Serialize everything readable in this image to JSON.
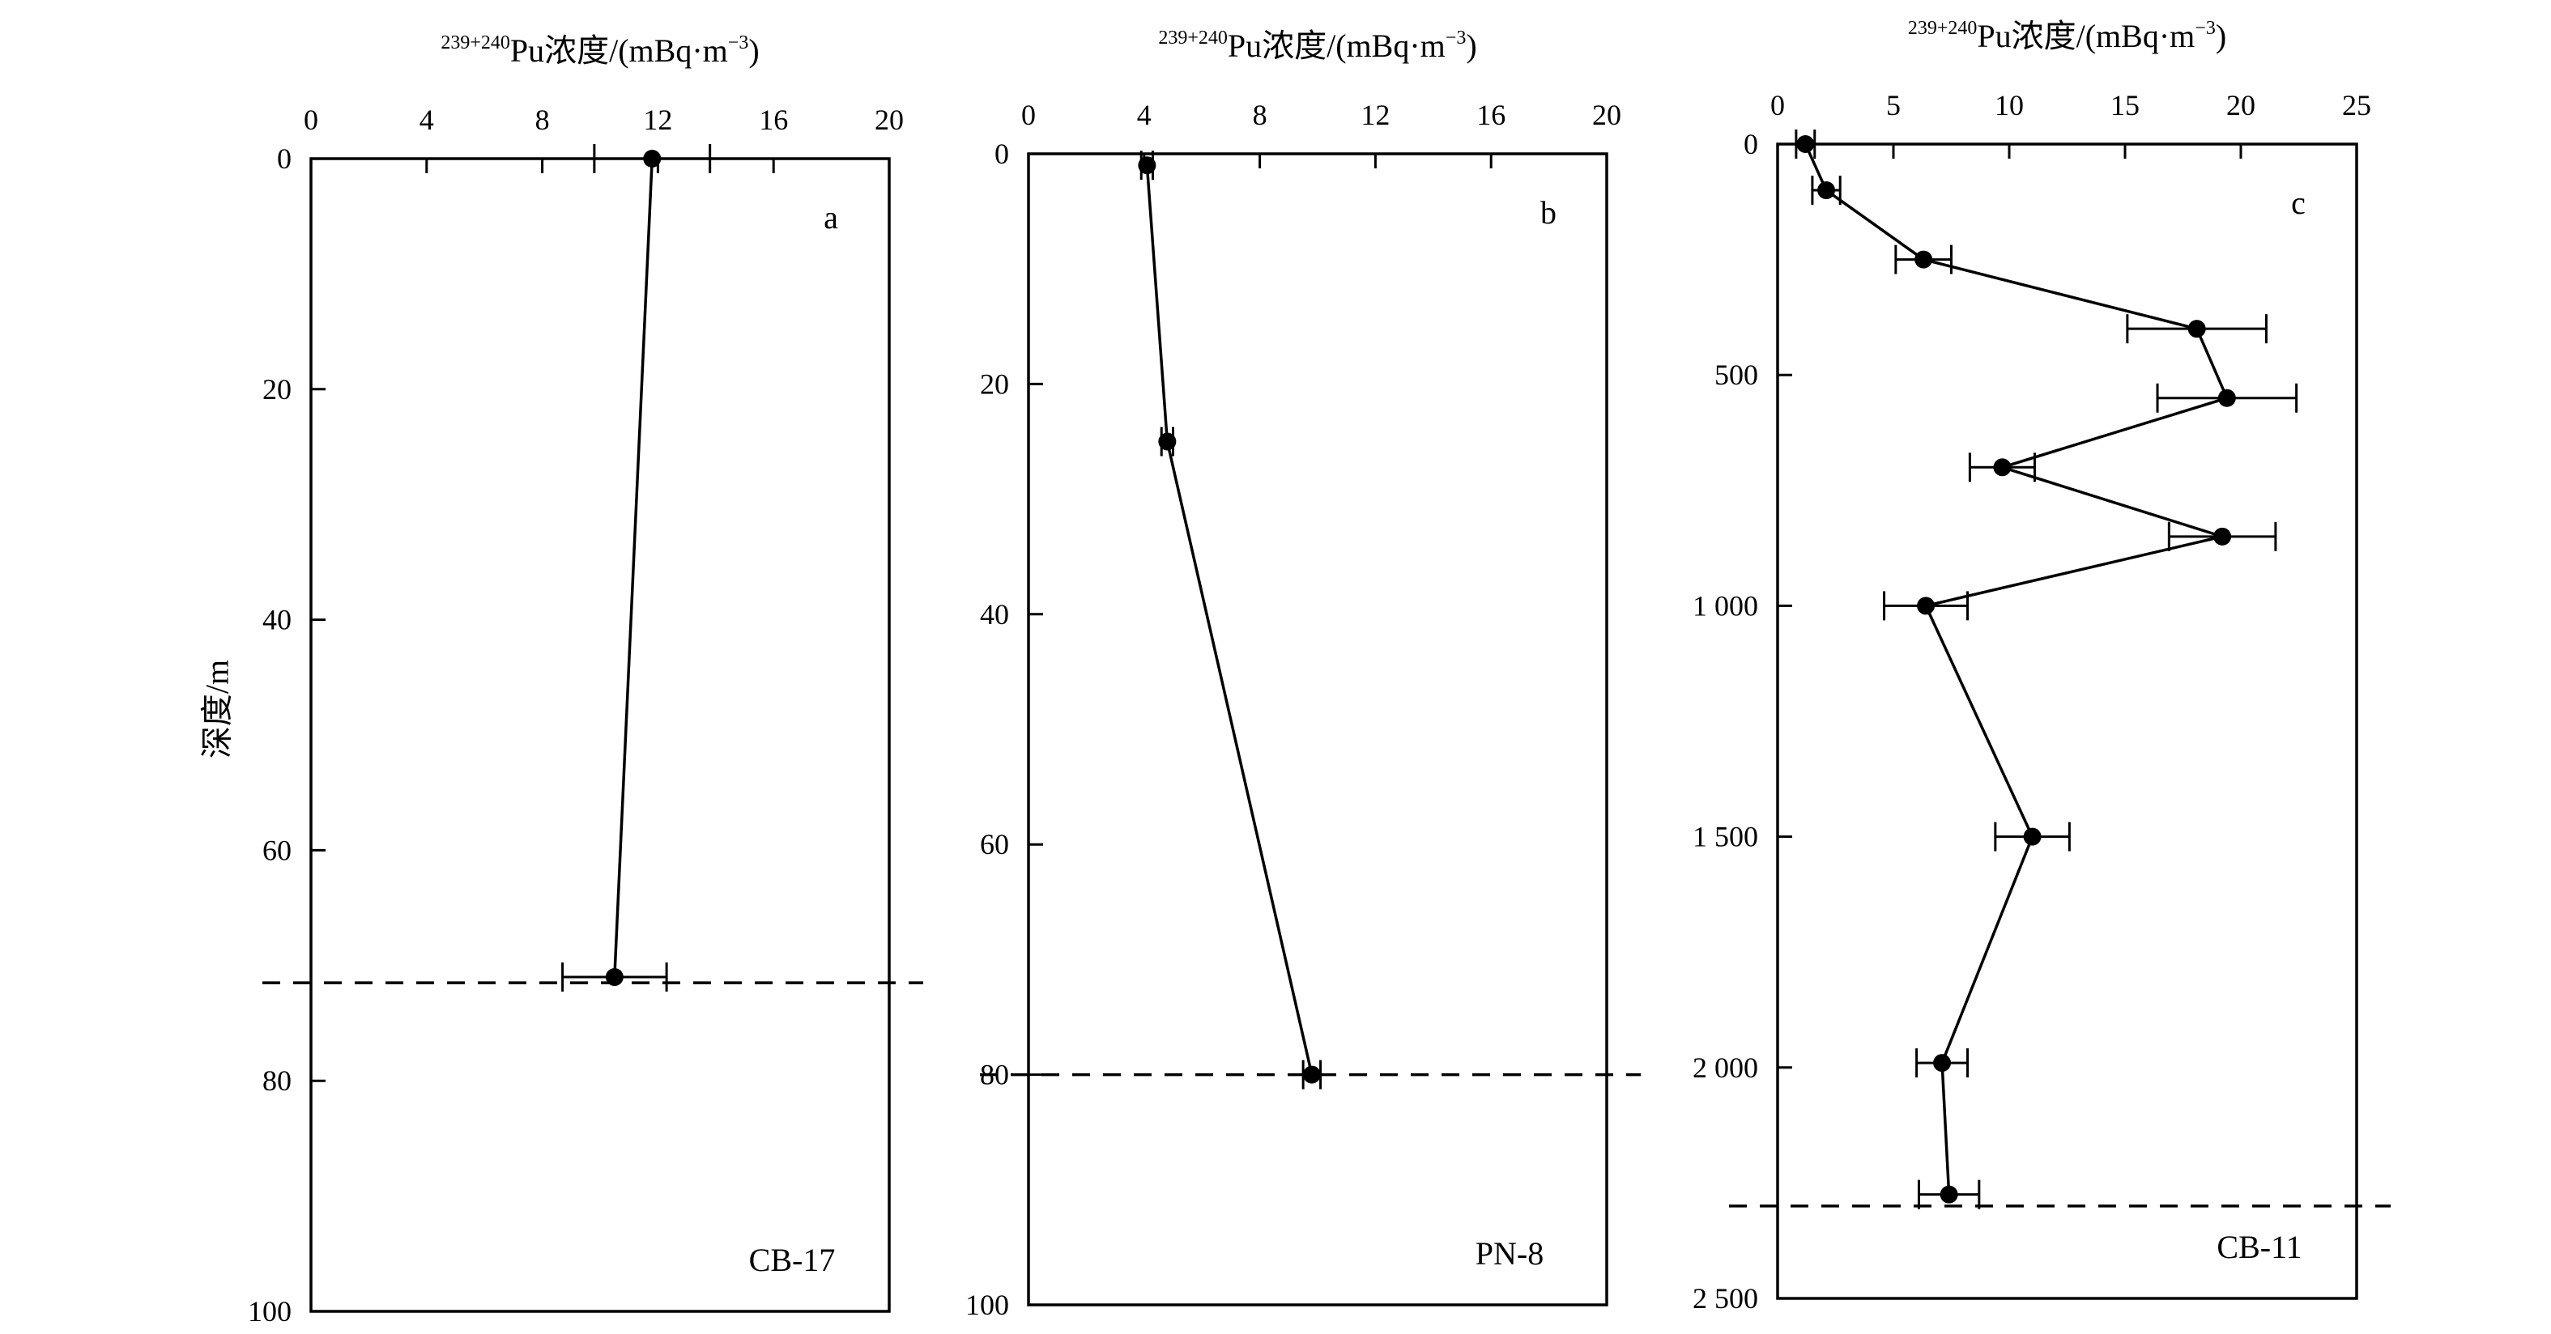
{
  "y_axis_label": "深度/m",
  "colors": {
    "ink": "#000000",
    "background": "#ffffff"
  },
  "chart_data": [
    {
      "type": "line",
      "panel_letter": "a",
      "station": "CB-17",
      "xlabel_sup": "239+240",
      "xlabel_main": "Pu浓度/(mBq·m",
      "xlabel_exp": "−3",
      "xlabel_close": ")",
      "xlim": [
        0,
        20
      ],
      "x_ticks": [
        "0",
        "4",
        "8",
        "12",
        "16",
        "20"
      ],
      "ylim": [
        0,
        100
      ],
      "y_ticks": [
        "0",
        "20",
        "40",
        "60",
        "80",
        "100"
      ],
      "dashed_line_depth": 71.5,
      "x": [
        11.8,
        10.5
      ],
      "y": [
        0,
        71
      ],
      "x_err": [
        2.0,
        1.8
      ]
    },
    {
      "type": "line",
      "panel_letter": "b",
      "station": "PN-8",
      "xlabel_sup": "239+240",
      "xlabel_main": "Pu浓度/(mBq·m",
      "xlabel_exp": "−3",
      "xlabel_close": ")",
      "xlim": [
        0,
        20
      ],
      "x_ticks": [
        "0",
        "4",
        "8",
        "12",
        "16",
        "20"
      ],
      "ylim": [
        0,
        100
      ],
      "y_ticks": [
        "0",
        "20",
        "40",
        "60",
        "80",
        "100"
      ],
      "dashed_line_depth": 80,
      "x": [
        4.1,
        4.8,
        9.8
      ],
      "y": [
        1,
        25,
        80
      ],
      "x_err": [
        0.2,
        0.2,
        0.3
      ]
    },
    {
      "type": "line",
      "panel_letter": "c",
      "station": "CB-11",
      "xlabel_sup": "239+240",
      "xlabel_main": "Pu浓度/(mBq·m",
      "xlabel_exp": "−3",
      "xlabel_close": ")",
      "xlim": [
        0,
        25
      ],
      "x_ticks": [
        "0",
        "5",
        "10",
        "15",
        "20",
        "25"
      ],
      "ylim": [
        0,
        2500
      ],
      "y_ticks": [
        "0",
        "500",
        "1 000",
        "1 500",
        "2 000",
        "2 500"
      ],
      "dashed_line_depth": 2300,
      "x": [
        1.2,
        2.1,
        6.3,
        18.1,
        19.4,
        9.7,
        19.2,
        6.4,
        11.0,
        7.1,
        7.4
      ],
      "y": [
        0,
        100,
        250,
        400,
        550,
        700,
        850,
        1000,
        1500,
        1990,
        2275
      ],
      "x_err": [
        0.4,
        0.6,
        1.2,
        3.0,
        3.0,
        1.4,
        2.3,
        1.8,
        1.6,
        1.1,
        1.3
      ]
    }
  ]
}
